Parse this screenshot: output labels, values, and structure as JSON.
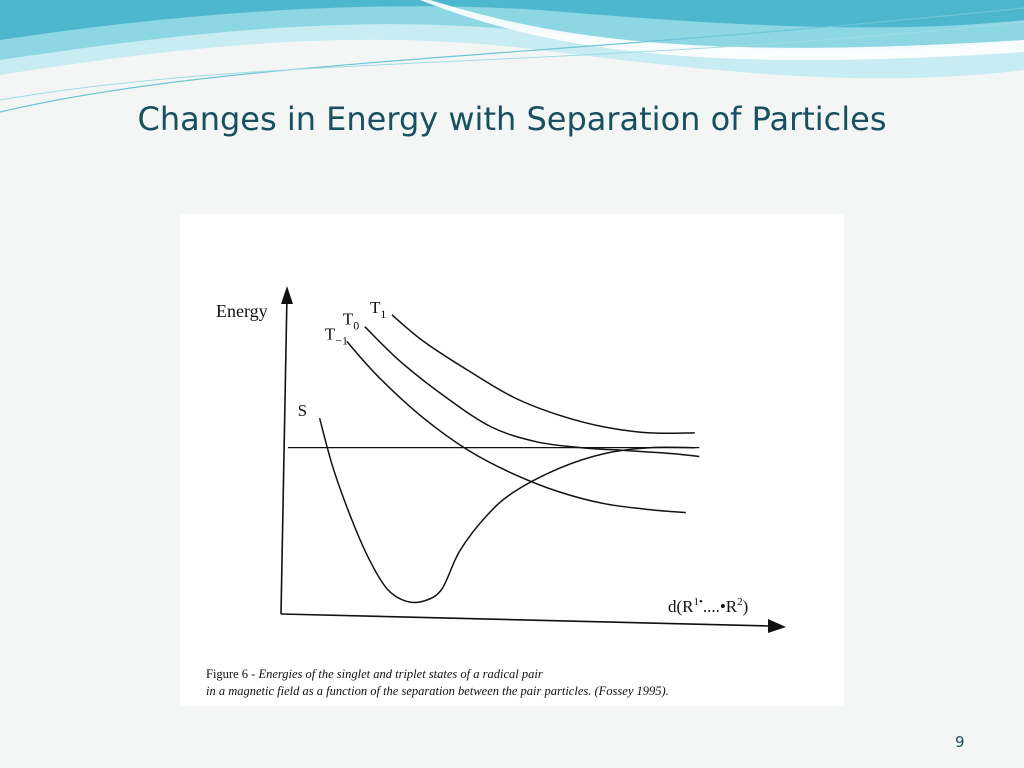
{
  "slide": {
    "title": "Changes in Energy with Separation of Particles",
    "page_number": "9",
    "colors": {
      "title": "#17505e",
      "wave_light": "#bfe8ef",
      "wave_mid": "#7fd0de",
      "wave_dark": "#3fb3c9"
    }
  },
  "figure": {
    "caption_label": "Figure 6 - ",
    "caption_line1": "Energies of the singlet and triplet states of a radical pair",
    "caption_line2": "in a magnetic field as a function of the separation between the pair particles. (Fossey 1995)."
  },
  "chart_data": {
    "type": "line",
    "ylabel": "Energy",
    "xlabel_parts": {
      "base": "d(R",
      "sup1": "1•",
      "mid": "....•R",
      "sup2": "2",
      "close": ")"
    },
    "grid": false,
    "legend": "none",
    "xlim": [
      0,
      10
    ],
    "ylim": [
      0,
      10
    ],
    "reference_line": {
      "y": 5.3
    },
    "series": [
      {
        "name": "S",
        "label_base": "S",
        "label_sub": "",
        "x": [
          0.7,
          1.0,
          1.4,
          1.8,
          2.2,
          2.6,
          3.0,
          3.4,
          3.8,
          4.4,
          5.0,
          6.0,
          7.0,
          8.0,
          9.0
        ],
        "y": [
          6.3,
          4.6,
          2.9,
          1.5,
          0.5,
          0.1,
          0.1,
          0.5,
          1.8,
          3.0,
          3.8,
          4.6,
          5.1,
          5.3,
          5.3
        ]
      },
      {
        "name": "T-1",
        "label_base": "T",
        "label_sub": "−1",
        "x": [
          1.3,
          2.0,
          3.0,
          4.0,
          5.0,
          6.0,
          7.0,
          8.0,
          8.8
        ],
        "y": [
          8.9,
          7.7,
          6.3,
          5.2,
          4.4,
          3.8,
          3.4,
          3.2,
          3.1
        ]
      },
      {
        "name": "T0",
        "label_base": "T",
        "label_sub": "0",
        "x": [
          1.7,
          2.5,
          3.5,
          4.5,
          5.5,
          6.5,
          7.5,
          8.5,
          9.1
        ],
        "y": [
          9.4,
          8.2,
          7.0,
          6.0,
          5.5,
          5.3,
          5.2,
          5.1,
          5.0
        ]
      },
      {
        "name": "T1",
        "label_base": "T",
        "label_sub": "1",
        "x": [
          2.3,
          3.0,
          4.0,
          5.0,
          6.0,
          7.0,
          8.0,
          9.0
        ],
        "y": [
          9.8,
          8.9,
          7.9,
          7.0,
          6.4,
          6.0,
          5.8,
          5.8
        ]
      }
    ]
  }
}
